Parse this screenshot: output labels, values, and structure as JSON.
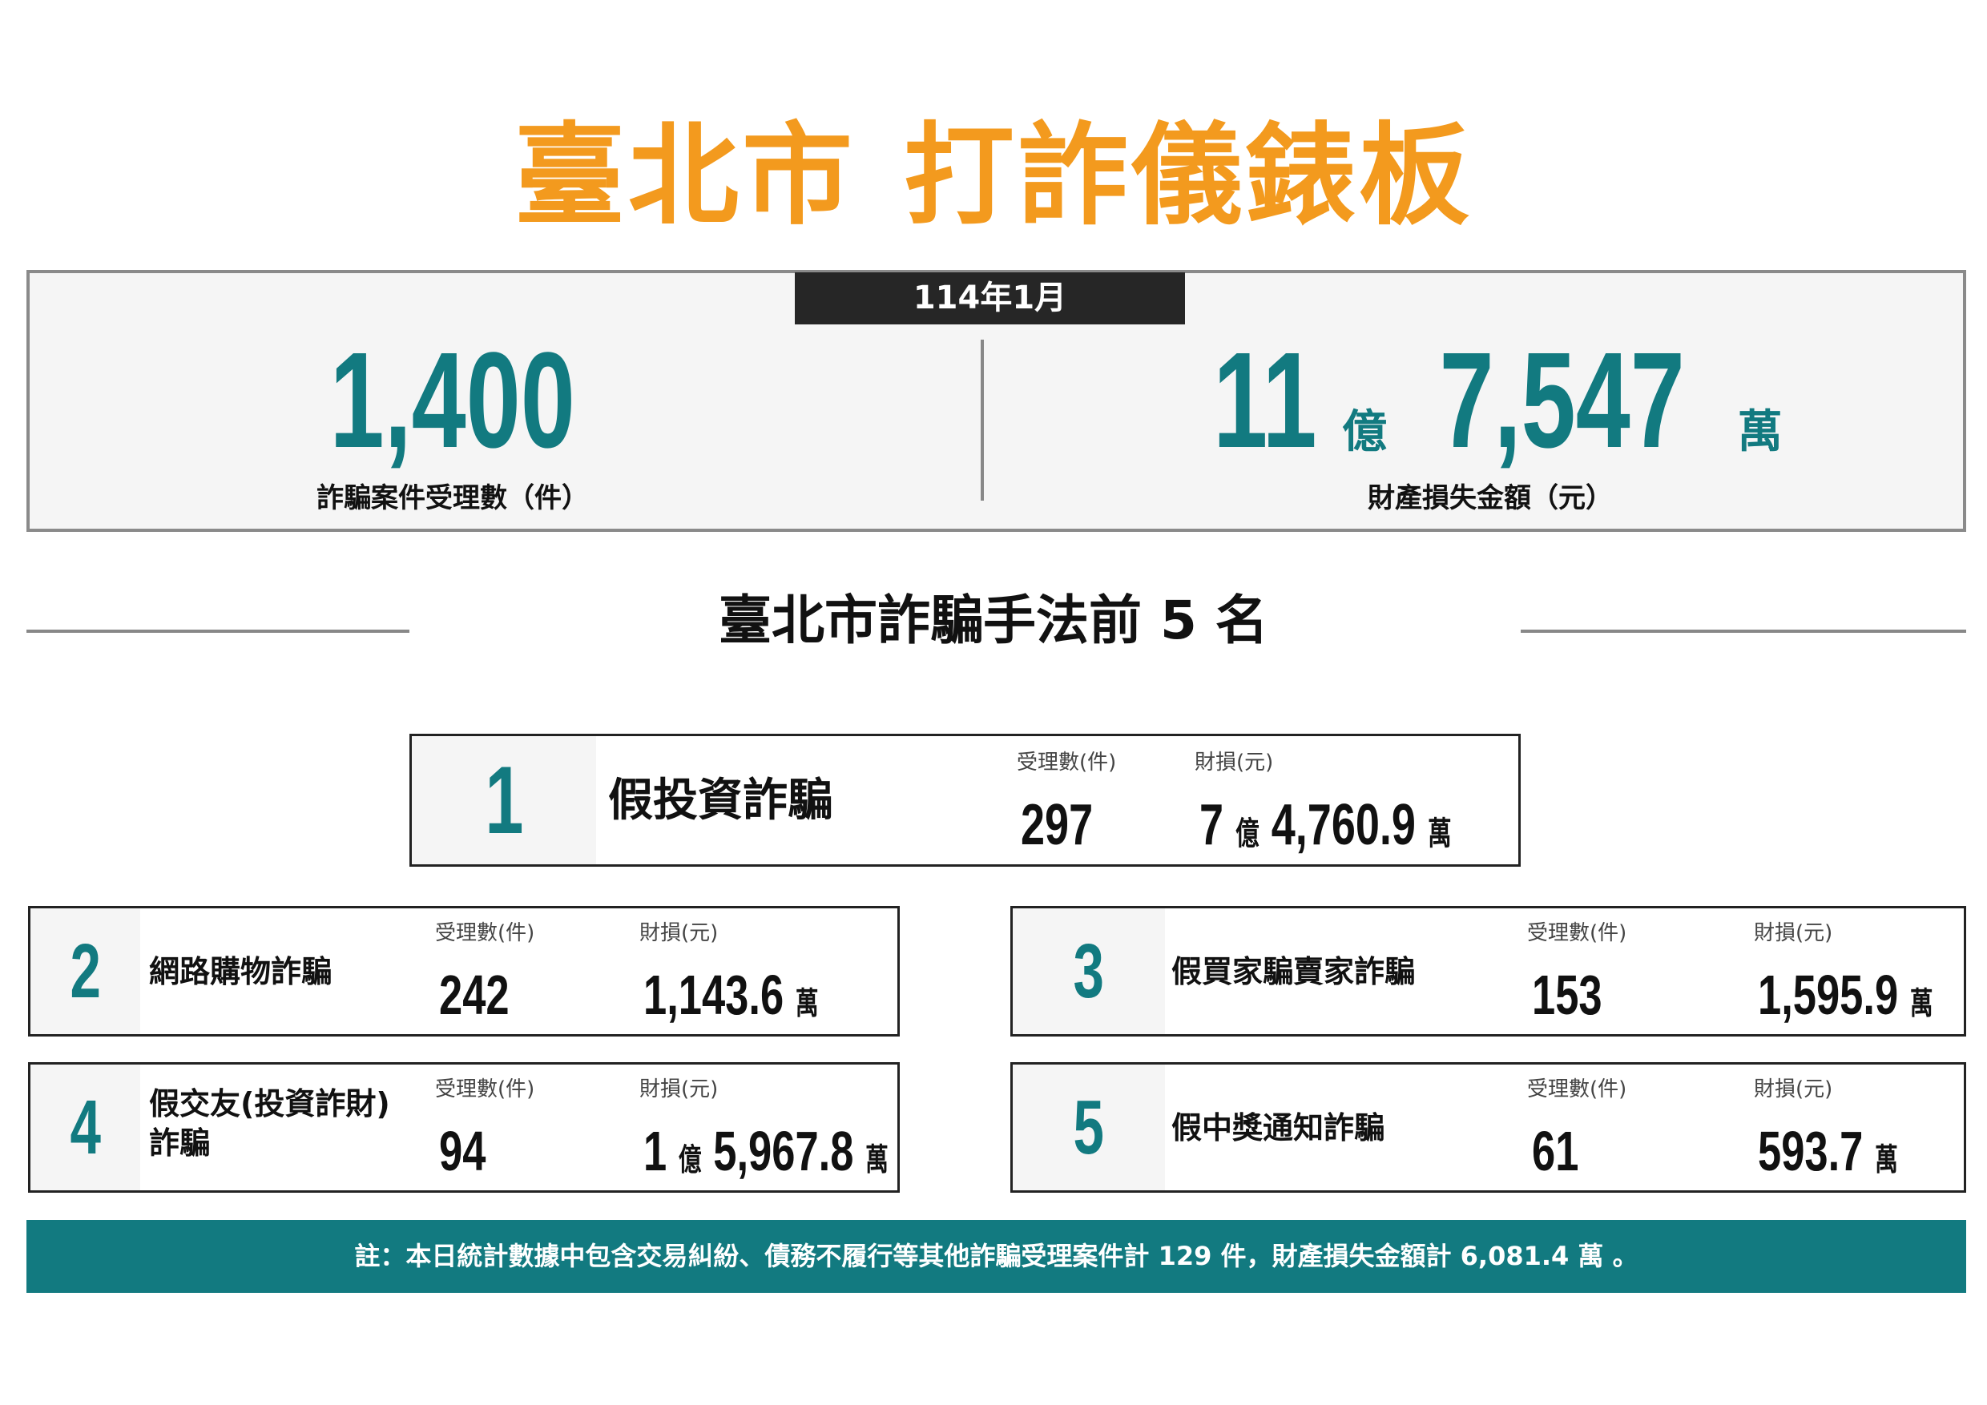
{
  "title": {
    "city": "臺北市",
    "name": "打詐儀錶板"
  },
  "period": "114年1月",
  "summary": {
    "cases": {
      "value": "1,400",
      "label": "詐騙案件受理數（件）"
    },
    "loss": {
      "yi": "11",
      "yi_unit": "億",
      "wan": "7,547",
      "wan_unit": "萬",
      "label": "財產損失金額（元）"
    }
  },
  "section_title": "臺北市詐騙手法前 5 名",
  "headers": {
    "cases": "受理數(件)",
    "loss": "財損(元)"
  },
  "ranks": [
    {
      "rank": "1",
      "name": "假投資詐騙",
      "cases": "297",
      "loss_yi": "7",
      "loss_wan": "4,760.9"
    },
    {
      "rank": "2",
      "name": "網路購物詐騙",
      "cases": "242",
      "loss_yi": "",
      "loss_wan": "1,143.6"
    },
    {
      "rank": "3",
      "name": "假買家騙賣家詐騙",
      "cases": "153",
      "loss_yi": "",
      "loss_wan": "1,595.9"
    },
    {
      "rank": "4",
      "name": "假交友(投資詐財)詐騙",
      "name_line1": "假交友(投資詐財)",
      "name_line2": "詐騙",
      "cases": "94",
      "loss_yi": "1",
      "loss_wan": "5,967.8"
    },
    {
      "rank": "5",
      "name": "假中獎通知詐騙",
      "cases": "61",
      "loss_yi": "",
      "loss_wan": "593.7"
    }
  ],
  "units": {
    "yi": "億",
    "wan": "萬"
  },
  "note": "註：本日統計數據中包含交易糾紛、債務不履行等其他詐騙受理案件計 129 件，財產損失金額計 6,081.4 萬 。",
  "colors": {
    "accent": "#F39A1E",
    "teal": "#127A80",
    "dark": "#262626"
  }
}
